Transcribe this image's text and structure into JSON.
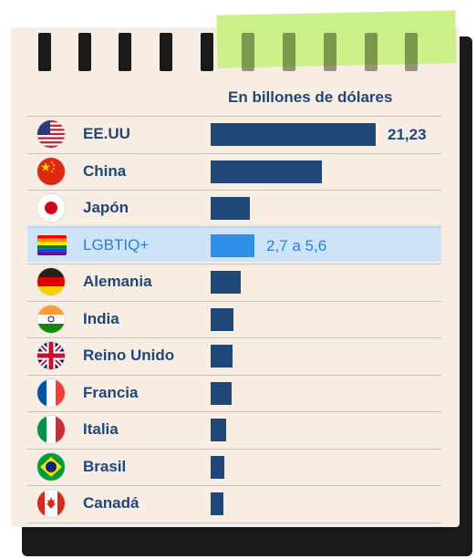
{
  "chart_data": {
    "type": "bar",
    "orientation": "horizontal",
    "unit_label": "En billones de dólares",
    "categories": [
      "EE.UU",
      "China",
      "Japón",
      "LGBTIQ+",
      "Alemania",
      "India",
      "Reino Unido",
      "Francia",
      "Italia",
      "Brasil",
      "Canadá"
    ],
    "values": [
      21.23,
      14.3,
      5.1,
      5.6,
      3.9,
      2.9,
      2.8,
      2.7,
      2.0,
      1.8,
      1.7
    ],
    "value_labels": [
      "21,23",
      "",
      "",
      "2,7 a 5,6",
      "",
      "",
      "",
      "",
      "",
      "",
      ""
    ],
    "highlight_index": 3,
    "highlight_range": [
      2.7,
      5.6
    ],
    "flags": [
      "usa-flag-icon",
      "china-flag-icon",
      "japan-flag-icon",
      "rainbow-flag-icon",
      "germany-flag-icon",
      "india-flag-icon",
      "uk-flag-icon",
      "france-flag-icon",
      "italy-flag-icon",
      "brazil-flag-icon",
      "canada-flag-icon"
    ],
    "colors": {
      "bar": "#1f4778",
      "highlight_bar": "#2f8ee8",
      "highlight_row": "#cde3f7",
      "text": "#1f4778",
      "highlight_text": "#2d7dd2"
    }
  }
}
